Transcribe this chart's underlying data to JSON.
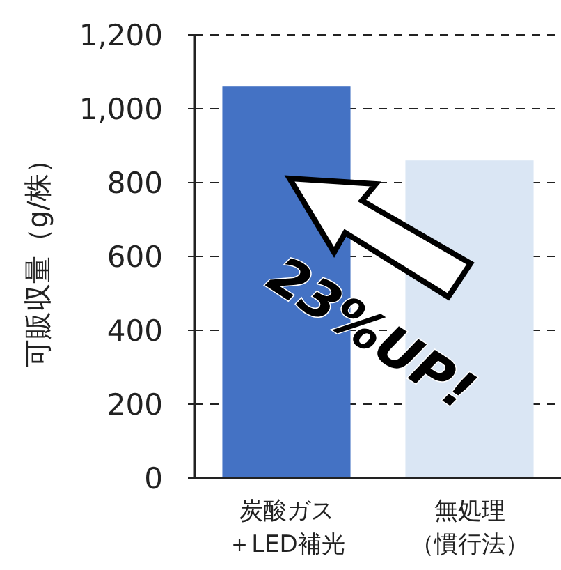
{
  "chart_data": {
    "type": "bar",
    "ylabel": "可販収量（g/株）",
    "categories": [
      "炭酸ガス＋LED補光",
      "無処理（慣行法）"
    ],
    "values": [
      1060,
      860
    ],
    "colors": [
      "#4472c4",
      "#dae6f4"
    ],
    "ylim": [
      0,
      1200
    ],
    "yticks": [
      0,
      200,
      400,
      600,
      800,
      {
        "value": 1000,
        "label": "1,000"
      },
      {
        "value": 1200,
        "label": "1,200"
      }
    ],
    "grid": "y",
    "annotations": [
      "23%UP!"
    ]
  }
}
